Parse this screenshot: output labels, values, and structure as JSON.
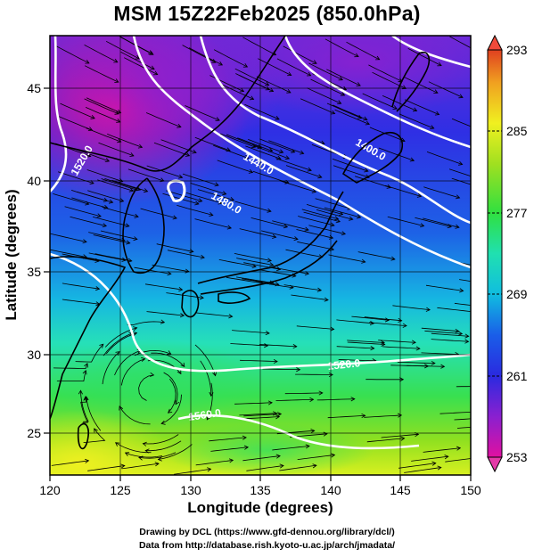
{
  "title": "MSM 15Z22Feb2025 (850.0hPa)",
  "axes": {
    "xlabel": "Longitude (degrees)",
    "ylabel": "Latitude  (degrees)",
    "x_ticks": [
      "120",
      "125",
      "130",
      "135",
      "140",
      "145",
      "150"
    ],
    "y_ticks": [
      "25",
      "30",
      "35",
      "40",
      "45"
    ],
    "xlim": [
      120,
      150
    ],
    "ylim": [
      22.4,
      47.6
    ]
  },
  "colorbar": {
    "ticks": [
      "293",
      "285",
      "277",
      "269",
      "261",
      "253"
    ],
    "range": [
      253,
      293
    ],
    "colors": [
      "#e0109a",
      "#8a1fd0",
      "#2b2be0",
      "#1a60e8",
      "#10c0e0",
      "#20e0b0",
      "#30e040",
      "#a0e020",
      "#f0f020",
      "#f0a020",
      "#e04020"
    ]
  },
  "contours": [
    {
      "label": "1520.0"
    },
    {
      "label": "1440.0"
    },
    {
      "label": "1480.0"
    },
    {
      "label": "1400.0"
    },
    {
      "label": "1520.0"
    },
    {
      "label": "1560.0"
    }
  ],
  "credits": {
    "line1": "Drawing by DCL (https://www.gfd-dennou.org/library/dcl/)",
    "line2": "Data from http://database.rish.kyoto-u.ac.jp/arch/jmadata/"
  },
  "chart_data": {
    "type": "heatmap",
    "title": "MSM 15Z22Feb2025 (850.0hPa)",
    "xlabel": "Longitude (degrees)",
    "ylabel": "Latitude  (degrees)",
    "xlim": [
      120,
      150
    ],
    "ylim": [
      22.4,
      47.6
    ],
    "grid": true,
    "colorbar_range": [
      253,
      293
    ],
    "colorbar_ticks": [
      253,
      261,
      269,
      277,
      285,
      293
    ],
    "contour_levels": [
      1400.0,
      1440.0,
      1480.0,
      1520.0,
      1560.0
    ]
  }
}
